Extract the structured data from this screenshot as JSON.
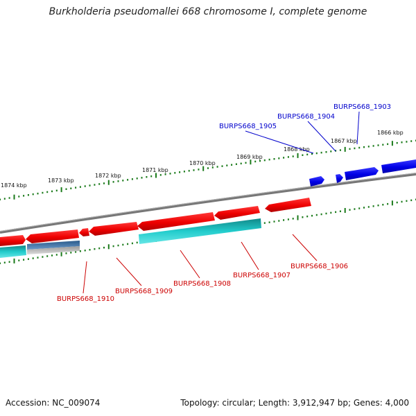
{
  "title": "Burkholderia pseudomallei 668 chromosome I, complete genome",
  "footer": {
    "accession": "Accession: NC_009074",
    "summary": "Topology: circular; Length: 3,912,947 bp; Genes: 4,000"
  },
  "colors": {
    "backbone": "#808080",
    "tick": "#1a7a1a",
    "gene_forward": "#0000e6",
    "gene_reverse": "#ee0000",
    "cds_cyan": "#22cccc",
    "cds_steelblue": "#4a78a8",
    "label_forward": "#0000cc",
    "label_reverse": "#cc0000"
  },
  "map": {
    "tick_labels": [
      "1866 kbp",
      "1867 kbp",
      "1868 kbp",
      "1869 kbp",
      "1870 kbp",
      "1871 kbp",
      "1872 kbp",
      "1873 kbp",
      "1874 kbp"
    ],
    "forward_labels": [
      "BURPS668_1903",
      "BURPS668_1904",
      "BURPS668_1905"
    ],
    "reverse_labels": [
      "BURPS668_1906",
      "BURPS668_1907",
      "BURPS668_1908",
      "BURPS668_1909",
      "BURPS668_1910"
    ]
  }
}
